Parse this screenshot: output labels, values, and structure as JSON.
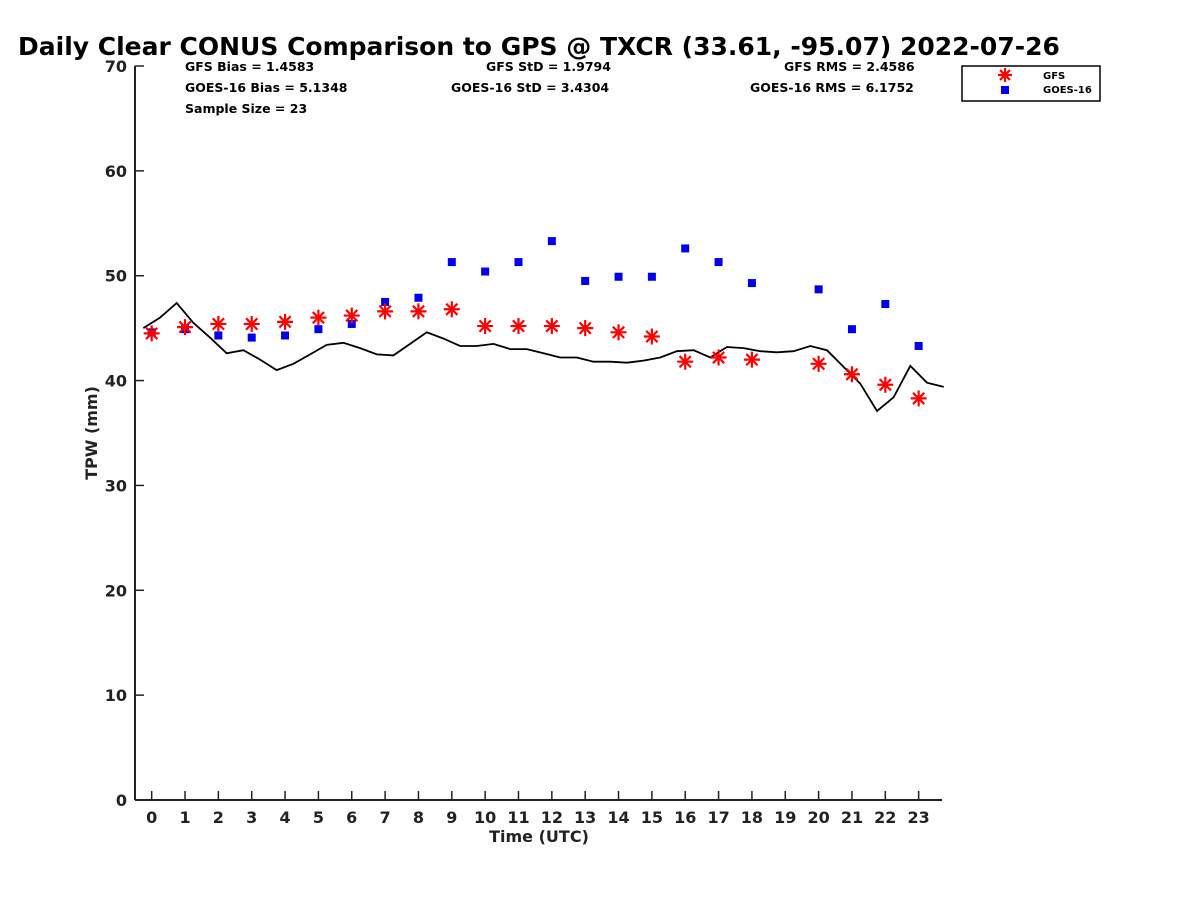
{
  "chart_data": {
    "type": "scatter",
    "title": "Daily Clear CONUS Comparison to GPS @ TXCR (33.61, -95.07) 2022-07-26",
    "xlabel": "Time (UTC)",
    "ylabel": "TPW (mm)",
    "xlim": [
      -0.5,
      23.7
    ],
    "ylim": [
      0,
      70
    ],
    "x_ticks": [
      0,
      1,
      2,
      3,
      4,
      5,
      6,
      7,
      8,
      9,
      10,
      11,
      12,
      13,
      14,
      15,
      16,
      17,
      18,
      19,
      20,
      21,
      22,
      23
    ],
    "y_ticks": [
      0,
      10,
      20,
      30,
      40,
      50,
      60,
      70
    ],
    "grid": false,
    "legend_position": "top-right",
    "stats": {
      "gfs_bias": "GFS Bias = 1.4583",
      "goes_bias": "GOES-16 Bias = 5.1348",
      "sample_size": "Sample Size = 23",
      "gfs_std": "GFS StD = 1.9794",
      "goes_std": "GOES-16 StD = 3.4304",
      "gfs_rms": "GFS RMS = 2.4586",
      "goes_rms": "GOES-16 RMS = 6.1752"
    },
    "series": [
      {
        "name": "GFS",
        "marker": "asterisk",
        "color": "#ff0000",
        "x": [
          0,
          1,
          2,
          3,
          4,
          5,
          6,
          7,
          8,
          9,
          10,
          11,
          12,
          13,
          14,
          15,
          16,
          17,
          18,
          20,
          21,
          22,
          23
        ],
        "y": [
          44.5,
          45.1,
          45.4,
          45.4,
          45.6,
          46.0,
          46.2,
          46.6,
          46.6,
          46.8,
          45.2,
          45.2,
          45.2,
          45.0,
          44.6,
          44.2,
          41.8,
          42.2,
          42.0,
          41.6,
          40.6,
          39.6,
          38.3
        ]
      },
      {
        "name": "GOES-16",
        "marker": "square",
        "color": "#0000ee",
        "x": [
          0,
          1,
          2,
          3,
          4,
          5,
          6,
          7,
          8,
          9,
          10,
          11,
          12,
          13,
          14,
          15,
          16,
          17,
          18,
          20,
          21,
          22,
          23
        ],
        "y": [
          44.6,
          44.9,
          44.3,
          44.1,
          44.3,
          44.9,
          45.4,
          47.5,
          47.9,
          51.3,
          50.4,
          51.3,
          53.3,
          49.5,
          49.9,
          49.9,
          52.6,
          51.3,
          49.3,
          48.7,
          44.9,
          47.3,
          43.3
        ]
      },
      {
        "marker": "line",
        "color": "#000000",
        "x": [
          -0.25,
          0.25,
          0.75,
          1.25,
          1.75,
          2.25,
          2.75,
          3.25,
          3.75,
          4.25,
          4.75,
          5.25,
          5.75,
          6.25,
          6.75,
          7.25,
          7.75,
          8.25,
          8.75,
          9.25,
          9.75,
          10.25,
          10.75,
          11.25,
          11.75,
          12.25,
          12.75,
          13.25,
          13.75,
          14.25,
          14.75,
          15.25,
          15.75,
          16.25,
          16.75,
          17.25,
          17.75,
          18.25,
          18.75,
          19.25,
          19.75,
          20.25,
          20.75,
          21.25,
          21.75,
          22.25,
          22.75,
          23.25,
          23.75
        ],
        "y": [
          45.0,
          46.0,
          47.4,
          45.5,
          44.1,
          42.6,
          42.9,
          42.0,
          41.0,
          41.6,
          42.5,
          43.4,
          43.6,
          43.1,
          42.5,
          42.4,
          43.5,
          44.6,
          44.0,
          43.3,
          43.3,
          43.5,
          43.0,
          43.0,
          42.6,
          42.2,
          42.2,
          41.8,
          41.8,
          41.7,
          41.9,
          42.2,
          42.8,
          42.9,
          42.2,
          43.2,
          43.1,
          42.8,
          42.7,
          42.8,
          43.3,
          42.9,
          41.3,
          39.7,
          37.1,
          38.4,
          41.4,
          39.8,
          39.4
        ]
      }
    ]
  }
}
